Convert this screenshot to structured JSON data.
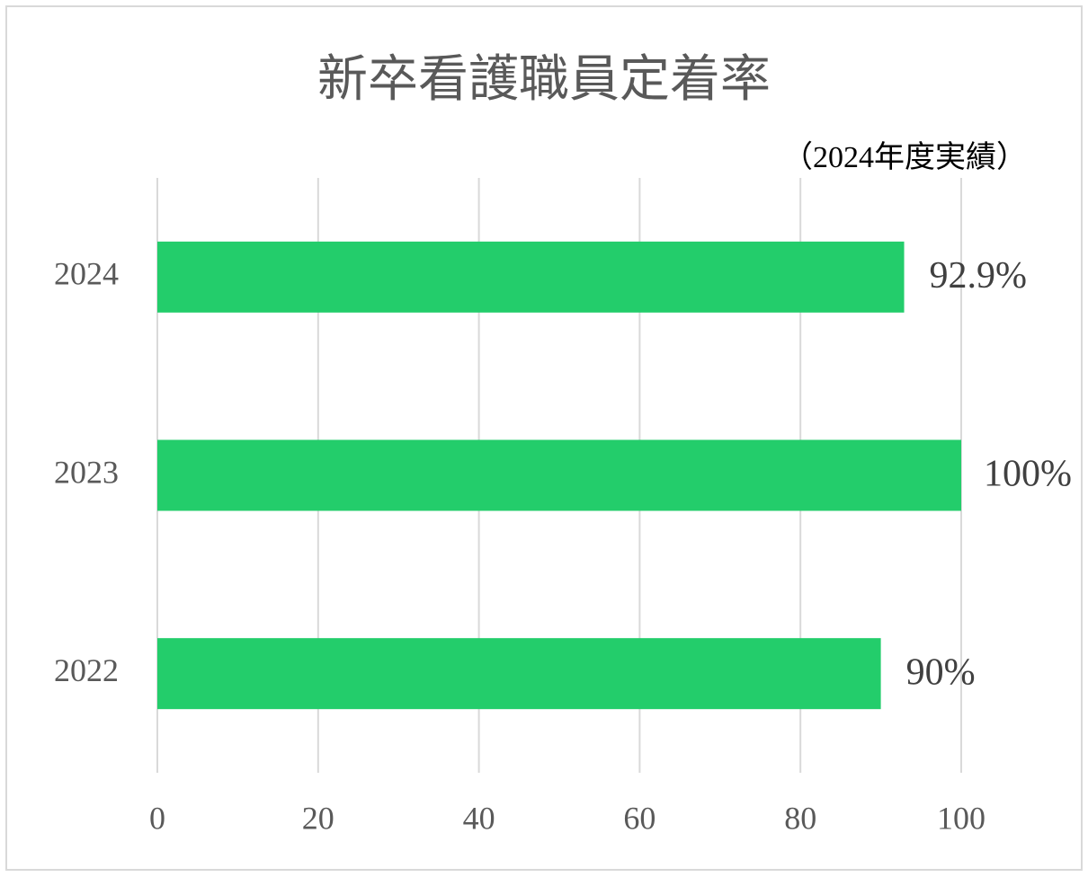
{
  "chart_data": {
    "type": "bar",
    "orientation": "horizontal",
    "title": "新卒看護職員定着率",
    "subtitle": "（2024年度実績）",
    "categories": [
      "2024",
      "2023",
      "2022"
    ],
    "values": [
      92.9,
      100,
      90
    ],
    "value_labels": [
      "92.9%",
      "100%",
      "90%"
    ],
    "color": "#23cd6b",
    "xlim": [
      0,
      100
    ],
    "xticks": [
      0,
      20,
      40,
      60,
      80,
      100
    ],
    "grid": true
  }
}
